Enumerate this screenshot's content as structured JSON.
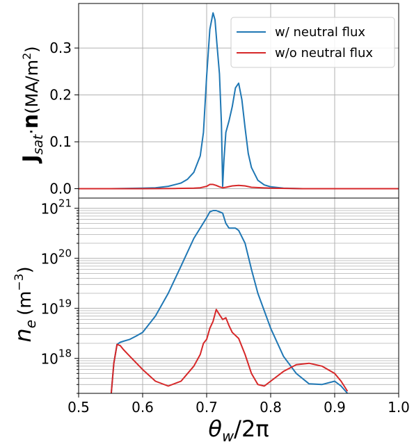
{
  "chart_data": [
    {
      "type": "line",
      "ylabel_bold": "J",
      "ylabel_sub": "sat",
      "ylabel_dot": "·",
      "ylabel_n": "n",
      "ylabel_unit_prefix": "(MA/m",
      "ylabel_unit_exp": "2",
      "ylabel_unit_suffix": ")",
      "xlim": [
        0.5,
        1.0
      ],
      "ylim": [
        -0.02,
        0.395
      ],
      "yticks": [
        0.0,
        0.1,
        0.2,
        0.3
      ],
      "ytick_labels": [
        "0.0",
        "0.1",
        "0.2",
        "0.3"
      ],
      "grid": true,
      "legend_position": "top-right",
      "series": [
        {
          "name": "w/  neutral flux",
          "color": "#1f77b4",
          "x": [
            0.5,
            0.55,
            0.6,
            0.62,
            0.64,
            0.66,
            0.67,
            0.68,
            0.69,
            0.695,
            0.7,
            0.705,
            0.71,
            0.713,
            0.716,
            0.72,
            0.723,
            0.725,
            0.727,
            0.73,
            0.735,
            0.74,
            0.745,
            0.75,
            0.755,
            0.76,
            0.765,
            0.77,
            0.78,
            0.79,
            0.8,
            0.82,
            0.85,
            0.9,
            1.0
          ],
          "y": [
            0.0,
            0.0,
            0.001,
            0.002,
            0.005,
            0.012,
            0.02,
            0.035,
            0.07,
            0.12,
            0.24,
            0.34,
            0.375,
            0.36,
            0.31,
            0.245,
            0.14,
            0.005,
            0.06,
            0.12,
            0.145,
            0.175,
            0.215,
            0.225,
            0.19,
            0.13,
            0.075,
            0.045,
            0.018,
            0.008,
            0.004,
            0.001,
            0.0,
            0.0,
            0.0
          ]
        },
        {
          "name": "w/o neutral flux",
          "color": "#d62728",
          "x": [
            0.5,
            0.6,
            0.65,
            0.68,
            0.69,
            0.7,
            0.705,
            0.71,
            0.715,
            0.72,
            0.725,
            0.73,
            0.74,
            0.75,
            0.76,
            0.77,
            0.8,
            0.85,
            1.0
          ],
          "y": [
            0.0,
            0.0,
            0.0005,
            0.001,
            0.002,
            0.005,
            0.009,
            0.009,
            0.007,
            0.004,
            0.002,
            0.003,
            0.006,
            0.007,
            0.006,
            0.003,
            0.001,
            0.0,
            0.0
          ]
        }
      ]
    },
    {
      "type": "line",
      "ylabel_var": "n",
      "ylabel_sub": "e",
      "ylabel_unit_prefix": "(m",
      "ylabel_unit_exp": "−3",
      "ylabel_unit_suffix": ")",
      "xlabel_theta": "θ",
      "xlabel_sub": "w",
      "xlabel_rest": "/2π",
      "xlim": [
        0.5,
        1.0
      ],
      "yscale": "log",
      "ylim": [
        2e+17,
        1.6e+21
      ],
      "xticks": [
        0.5,
        0.6,
        0.7,
        0.8,
        0.9,
        1.0
      ],
      "xtick_labels": [
        "0.5",
        "0.6",
        "0.7",
        "0.8",
        "0.9",
        "1.0"
      ],
      "ytick_base": "10",
      "yticks_exp": [
        "18",
        "19",
        "20",
        "21"
      ],
      "grid": true,
      "series": [
        {
          "color": "#1f77b4",
          "x": [
            0.551,
            0.555,
            0.56,
            0.565,
            0.57,
            0.58,
            0.59,
            0.6,
            0.62,
            0.64,
            0.66,
            0.68,
            0.7,
            0.705,
            0.71,
            0.715,
            0.72,
            0.725,
            0.73,
            0.735,
            0.74,
            0.745,
            0.75,
            0.76,
            0.77,
            0.78,
            0.8,
            0.82,
            0.84,
            0.86,
            0.88,
            0.9,
            0.91,
            0.92
          ],
          "y": [
            2e+17,
            8e+17,
            1.9e+18,
            2.1e+18,
            2.2e+18,
            2.4e+18,
            2.8e+18,
            3.3e+18,
            7e+18,
            2e+19,
            7e+19,
            2.5e+20,
            6.5e+20,
            8.5e+20,
            9e+20,
            9e+20,
            8.5e+20,
            8e+20,
            5e+20,
            4e+20,
            4e+20,
            4e+20,
            3.6e+20,
            2e+20,
            6e+19,
            2e+19,
            4e+18,
            1.1e+18,
            5e+17,
            3.1e+17,
            3e+17,
            3.5e+17,
            2.8e+17,
            2e+17
          ]
        },
        {
          "color": "#d62728",
          "x": [
            0.551,
            0.555,
            0.56,
            0.565,
            0.57,
            0.58,
            0.6,
            0.62,
            0.64,
            0.66,
            0.68,
            0.69,
            0.695,
            0.7,
            0.705,
            0.71,
            0.715,
            0.72,
            0.725,
            0.73,
            0.735,
            0.74,
            0.75,
            0.76,
            0.77,
            0.78,
            0.79,
            0.8,
            0.82,
            0.84,
            0.86,
            0.88,
            0.9,
            0.91,
            0.92
          ],
          "y": [
            2e+17,
            8e+17,
            1.9e+18,
            1.8e+18,
            1.5e+18,
            1.1e+18,
            6e+17,
            3.5e+17,
            2.8e+17,
            3.5e+17,
            7e+17,
            1.2e+18,
            2e+18,
            2.4e+18,
            4e+18,
            5.5e+18,
            9.5e+18,
            7.5e+18,
            6e+18,
            6.5e+18,
            4.5e+18,
            3.3e+18,
            2.5e+18,
            1.2e+18,
            5e+17,
            3e+17,
            2.8e+17,
            3.5e+17,
            5.5e+17,
            7.5e+17,
            8e+17,
            7e+17,
            5e+17,
            3.5e+17,
            2.2e+17
          ]
        }
      ]
    }
  ]
}
